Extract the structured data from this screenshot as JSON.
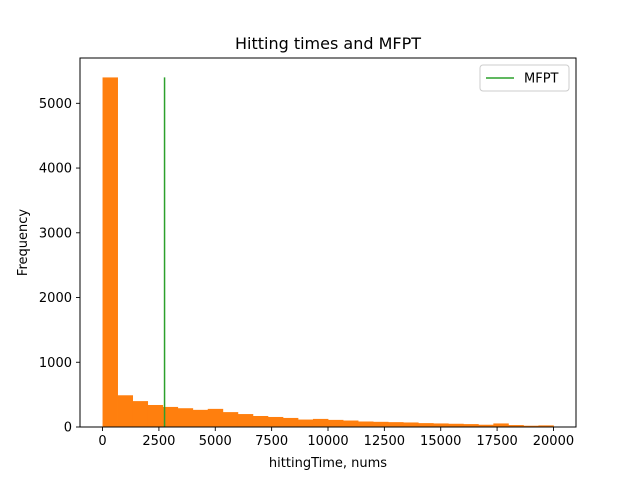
{
  "chart_data": {
    "type": "bar",
    "title": "Hitting times and MFPT",
    "xlabel": "hittingTime, nums",
    "ylabel": "Frequency",
    "xlim": [
      -1000,
      21000
    ],
    "ylim": [
      0,
      5700
    ],
    "xticks": [
      0,
      2500,
      5000,
      7500,
      10000,
      12500,
      15000,
      17500,
      20000
    ],
    "xtick_labels": [
      "0",
      "2500",
      "5000",
      "7500",
      "10000",
      "12500",
      "15000",
      "17500",
      "20000"
    ],
    "yticks": [
      0,
      1000,
      2000,
      3000,
      4000,
      5000
    ],
    "ytick_labels": [
      "0",
      "1000",
      "2000",
      "3000",
      "4000",
      "5000"
    ],
    "grid": false,
    "bar_color": "#ff7f0e",
    "bins": {
      "start": 0,
      "width": 666.67,
      "counts": [
        5400,
        490,
        400,
        340,
        310,
        290,
        265,
        280,
        230,
        200,
        170,
        155,
        140,
        115,
        125,
        110,
        100,
        85,
        80,
        75,
        70,
        60,
        55,
        50,
        45,
        35,
        55,
        30,
        20,
        25
      ]
    },
    "mfpt": {
      "name": "MFPT",
      "x": 2750,
      "y_from": 0,
      "y_to": 5400,
      "color": "#2ca02c"
    },
    "legend": {
      "position": "top-right",
      "entries": [
        "MFPT"
      ]
    }
  }
}
